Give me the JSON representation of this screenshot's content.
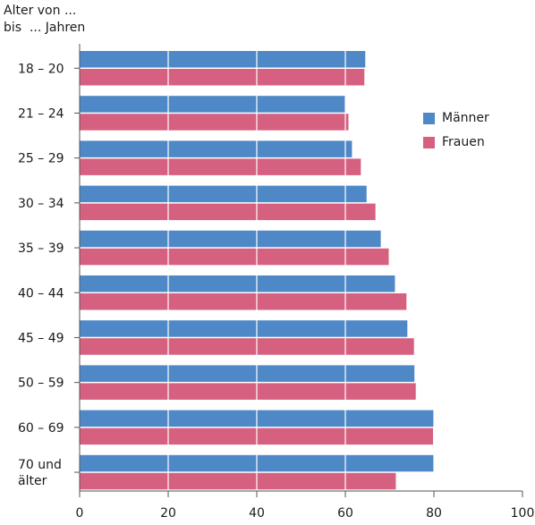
{
  "chart_data": {
    "type": "bar",
    "orientation": "horizontal",
    "ylabel": "Alter von ...\nbis  ... Jahren",
    "categories": [
      "18 – 20",
      "21 – 24",
      "25 – 29",
      "30 – 34",
      "35 – 39",
      "40 – 44",
      "45 – 49",
      "50 – 59",
      "60 – 69",
      "70 und\nälter"
    ],
    "series": [
      {
        "name": "Männer",
        "color": "#4f88c6",
        "values": [
          64.5,
          60,
          61.5,
          64.8,
          68,
          71.2,
          74,
          75.6,
          80,
          80
        ]
      },
      {
        "name": "Frauen",
        "color": "#d6607f",
        "values": [
          64.3,
          60.7,
          63.5,
          66.8,
          69.8,
          73.8,
          75.5,
          75.9,
          79.8,
          71.4
        ]
      }
    ],
    "xlim": [
      0,
      100
    ],
    "xticks": [
      0,
      20,
      40,
      60,
      80,
      100
    ],
    "grid": true,
    "legend_position": "right"
  }
}
